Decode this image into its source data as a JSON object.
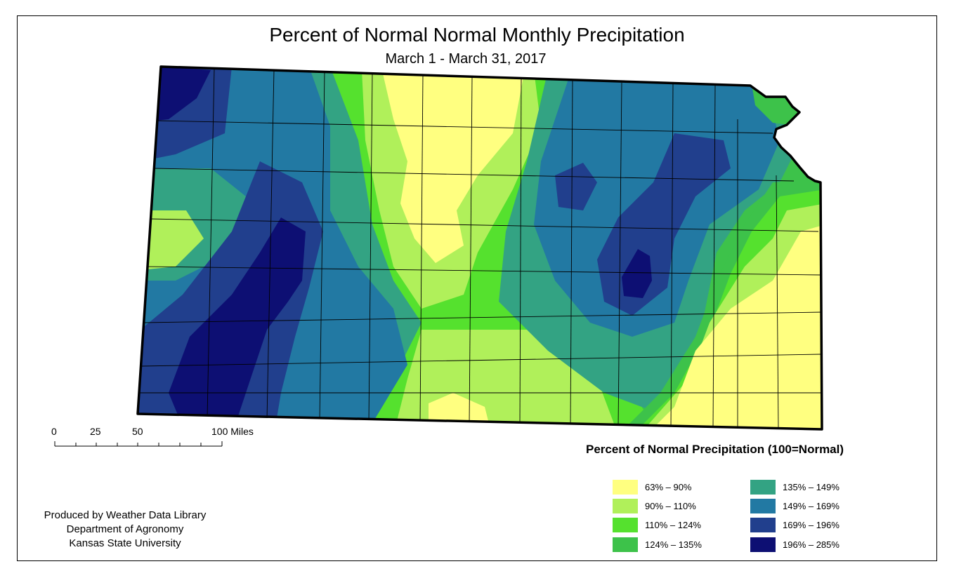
{
  "title": "Percent of Normal Normal Monthly Precipitation",
  "subtitle": "March 1 - March 31, 2017",
  "scale_bar": {
    "labels": [
      "0",
      "25",
      "50",
      "100 Miles"
    ]
  },
  "legend": {
    "title": "Percent of Normal Precipitation (100=Normal)",
    "classes": [
      {
        "label": "63% – 90%",
        "color": "#ffff80"
      },
      {
        "label": "90% – 110%",
        "color": "#b0f05a"
      },
      {
        "label": "110% – 124%",
        "color": "#55e12e"
      },
      {
        "label": "124% – 135%",
        "color": "#3dc24a"
      },
      {
        "label": "135% – 149%",
        "color": "#33a383"
      },
      {
        "label": "149% – 169%",
        "color": "#2279a3"
      },
      {
        "label": "169% – 196%",
        "color": "#213f8d"
      },
      {
        "label": "196% – 285%",
        "color": "#0d0f73"
      }
    ]
  },
  "credits": {
    "line1": "Produced by Weather Data Library",
    "line2": "Department of Agronomy",
    "line3": "Kansas State University"
  }
}
